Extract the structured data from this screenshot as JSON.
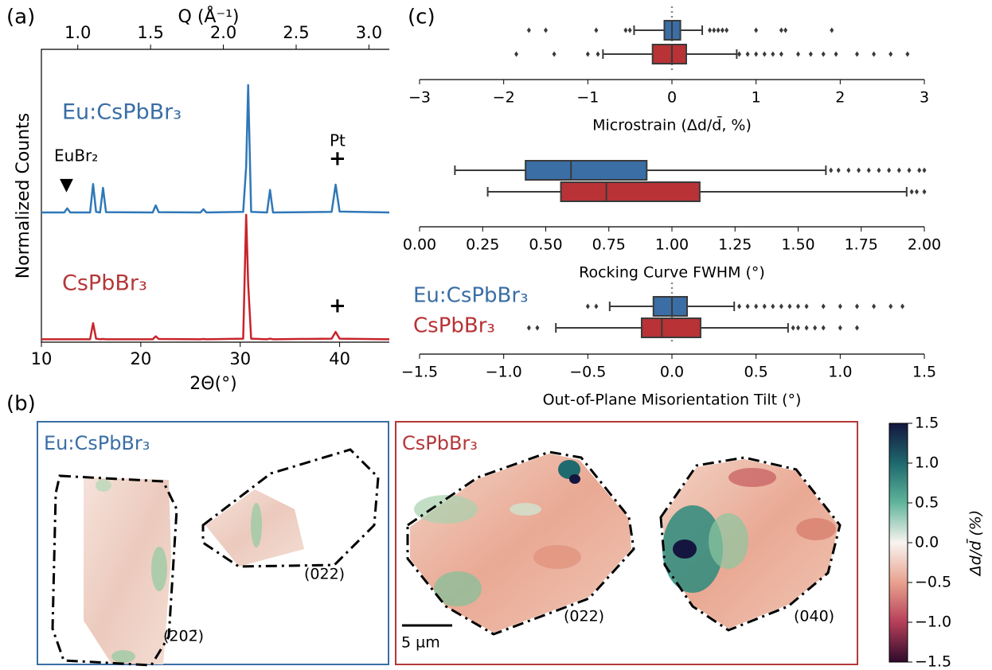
{
  "panel_labels": [
    "(a)",
    "(b)",
    "(c)"
  ],
  "chart_data": [
    {
      "type": "line",
      "xlabel": "2Θ(°)",
      "ylabel": "Normalized Counts",
      "x2label": "Q (Å⁻¹)",
      "x": [
        10,
        12.3,
        12.6,
        12.9,
        14.9,
        15.2,
        15.5,
        15.9,
        16.2,
        16.5,
        21.2,
        21.5,
        21.8,
        26.0,
        26.3,
        26.6,
        30.3,
        30.6,
        30.8,
        31.1,
        32.7,
        33.0,
        33.3,
        39.2,
        39.6,
        40.0,
        45
      ],
      "series": [
        {
          "color": "#2f78b7",
          "values": [
            0.443,
            0.443,
            0.457,
            0.443,
            0.443,
            0.54,
            0.445,
            0.443,
            0.527,
            0.444,
            0.443,
            0.467,
            0.444,
            0.443,
            0.454,
            0.443,
            0.445,
            0.6,
            0.878,
            0.445,
            0.443,
            0.52,
            0.443,
            0.445,
            0.538,
            0.446,
            0.443
          ]
        },
        {
          "color": "#c8242b",
          "values": [
            0.01,
            0.01,
            0.01,
            0.01,
            0.01,
            0.065,
            0.012,
            0.01,
            0.011,
            0.01,
            0.01,
            0.02,
            0.011,
            0.01,
            0.011,
            0.01,
            0.012,
            0.435,
            0.2,
            0.012,
            0.01,
            0.012,
            0.01,
            0.012,
            0.035,
            0.012,
            0.01
          ]
        }
      ],
      "xlim": [
        10,
        45
      ],
      "xticks": [
        10,
        20,
        30,
        40
      ],
      "ylim": [
        0,
        1
      ],
      "x2lim": [
        0.75,
        3.14
      ],
      "x2ticks": [
        {
          "value": 1.0,
          "label": "1.0"
        },
        1.5,
        {
          "value": 2.0,
          "label": "2.0"
        },
        2.5,
        {
          "value": 3.0,
          "label": "3.0"
        }
      ],
      "annotations": [
        "Eu:CsPbBr₃",
        "CsPbBr₃",
        "EuBr₂",
        "▼",
        "Pt",
        "+",
        "+"
      ]
    },
    {
      "type": "box",
      "xlabel": "Microstrain (Δd/d̄, %)",
      "xlim": [
        -3,
        3
      ],
      "xticks": [
        {
          "value": -3,
          "label": "−3"
        },
        {
          "value": -2,
          "label": "−2"
        },
        {
          "value": -1,
          "label": "−1"
        },
        0,
        1,
        2,
        3
      ],
      "series": [
        {
          "color": "#3a6ea5",
          "whislo": -0.45,
          "q1": -0.09,
          "med": 0.0,
          "q3": 0.1,
          "whishi": 0.36,
          "outliers": [
            -1.7,
            -1.5,
            -0.9,
            -0.55,
            -0.5,
            0.45,
            0.5,
            0.55,
            0.6,
            0.65,
            1.0,
            1.3,
            1.35,
            1.9
          ]
        },
        {
          "color": "#b83236",
          "whislo": -0.82,
          "q1": -0.23,
          "med": 0.0,
          "q3": 0.17,
          "whishi": 0.77,
          "outliers": [
            -1.85,
            -1.4,
            -1.0,
            -0.88,
            0.8,
            0.9,
            1.0,
            1.1,
            1.2,
            1.3,
            1.5,
            1.65,
            1.8,
            1.95,
            2.2,
            2.4,
            2.6,
            2.8
          ]
        }
      ]
    },
    {
      "type": "box",
      "xlabel": "Rocking Curve FWHM (°)",
      "xlim": [
        0,
        2
      ],
      "xticks": [
        {
          "value": 0,
          "label": "0.00"
        },
        0.25,
        {
          "value": 0.5,
          "label": "0.50"
        },
        0.75,
        {
          "value": 1,
          "label": "1.00"
        },
        1.25,
        {
          "value": 1.5,
          "label": "1.50"
        },
        1.75,
        {
          "value": 2,
          "label": "2.00"
        }
      ],
      "series": [
        {
          "color": "#3a6ea5",
          "whislo": 0.14,
          "q1": 0.42,
          "med": 0.6,
          "q3": 0.9,
          "whishi": 1.61,
          "outliers": [
            1.63,
            1.66,
            1.7,
            1.74,
            1.78,
            1.82,
            1.86,
            1.9,
            1.94,
            1.98,
            2.0
          ]
        },
        {
          "color": "#b83236",
          "whislo": 0.27,
          "q1": 0.56,
          "med": 0.74,
          "q3": 1.11,
          "whishi": 1.93,
          "outliers": [
            1.95,
            1.97,
            2.0
          ]
        }
      ]
    },
    {
      "type": "box",
      "xlabel": "Out-of-Plane Misorientation Tilt (°)",
      "xlim": [
        -1.5,
        1.5
      ],
      "legend": "upper left",
      "xticks": [
        {
          "value": -1.5,
          "label": "−1.5"
        },
        {
          "value": -1,
          "label": "−1.0"
        },
        {
          "value": -0.5,
          "label": "−0.5"
        },
        {
          "value": 0,
          "label": "0.0"
        },
        0.5,
        {
          "value": 1,
          "label": "1.0"
        },
        1.5
      ],
      "series": [
        {
          "name": "Eu:CsPbBr₃",
          "color": "#3a6ea5",
          "whislo": -0.37,
          "q1": -0.11,
          "med": 0.0,
          "q3": 0.09,
          "whishi": 0.37,
          "outliers": [
            -0.5,
            -0.45,
            0.4,
            0.45,
            0.5,
            0.55,
            0.6,
            0.65,
            0.7,
            0.75,
            0.8,
            0.9,
            1.0,
            1.1,
            1.2,
            1.3,
            1.37
          ]
        },
        {
          "name": "CsPbBr₃",
          "color": "#b83236",
          "whislo": -0.69,
          "q1": -0.18,
          "med": -0.06,
          "q3": 0.17,
          "whishi": 0.69,
          "outliers": [
            -0.85,
            -0.8,
            0.72,
            0.75,
            0.8,
            0.85,
            0.9,
            1.0,
            1.1
          ]
        }
      ]
    },
    {
      "type": "colorbar",
      "ylabel": "Δd/d̄ (%)",
      "ylim": [
        -1.5,
        1.5
      ],
      "yticks": [
        {
          "value": 1.5,
          "label": "1.5"
        },
        {
          "value": 1,
          "label": "1.0"
        },
        0.5,
        {
          "value": 0,
          "label": "0.0"
        },
        {
          "value": -0.5,
          "label": "−0.5"
        },
        {
          "value": -1,
          "label": "−1.0"
        },
        {
          "value": -1.5,
          "label": "−1.5"
        }
      ]
    }
  ],
  "maps": {
    "panels": [
      {
        "title": "Eu:CsPbBr₃",
        "reflections": [
          "(202̄)",
          "(022)"
        ]
      },
      {
        "title": "CsPbBr₃",
        "reflections": [
          "(022)",
          "(040)"
        ]
      }
    ],
    "scale_bar": "5 µm"
  }
}
